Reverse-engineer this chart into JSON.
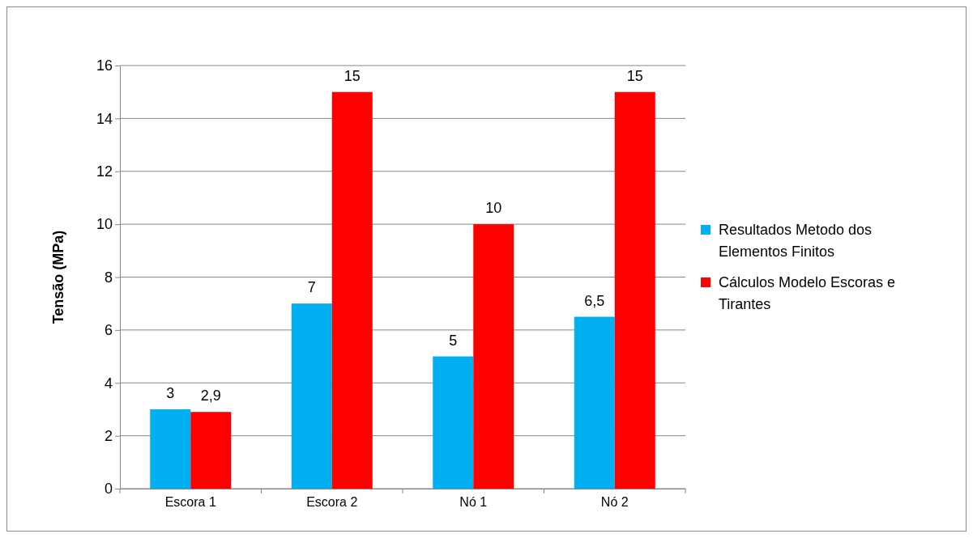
{
  "chart_data": {
    "type": "bar",
    "ylabel": "Tensão (MPa)",
    "categories": [
      "Escora 1",
      "Escora 2",
      "Nó 1",
      "Nó 2"
    ],
    "series": [
      {
        "name": "Resultados Metodo dos Elementos Finitos",
        "color": "#00b0f0",
        "values": [
          3,
          7,
          5,
          6.5
        ],
        "value_labels": [
          "3",
          "7",
          "5",
          "6,5"
        ]
      },
      {
        "name": "Cálculos Modelo Escoras e Tirantes",
        "color": "#ff0000",
        "values": [
          2.9,
          15,
          10,
          15
        ],
        "value_labels": [
          "2,9",
          "15",
          "10",
          "15"
        ]
      }
    ],
    "ylim": [
      0,
      16
    ],
    "yticks": [
      0,
      2,
      4,
      6,
      8,
      10,
      12,
      14,
      16
    ],
    "grid": "y",
    "legend": "right"
  }
}
